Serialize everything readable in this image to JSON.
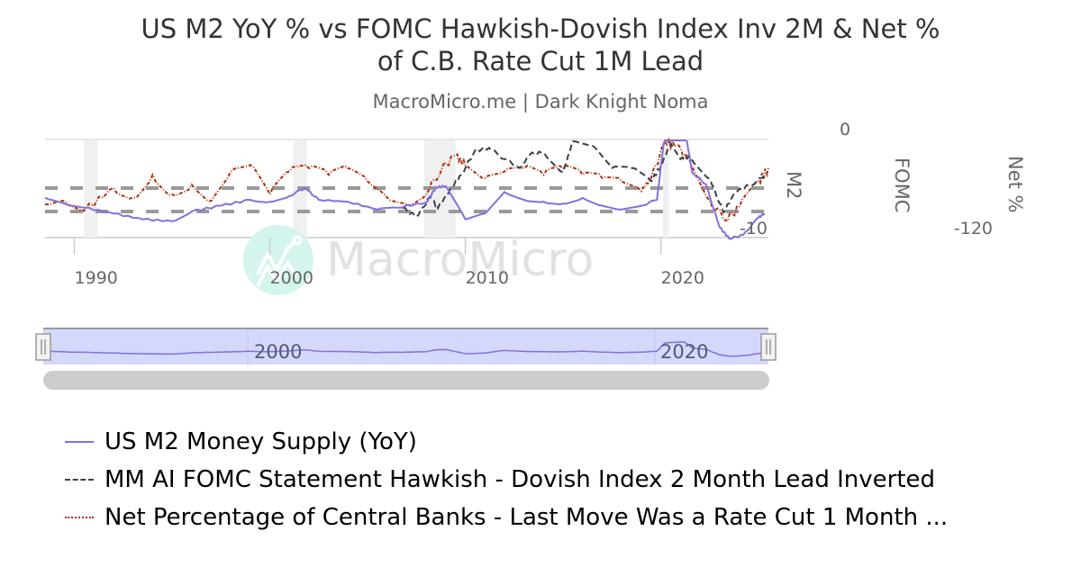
{
  "header": {
    "title_line1": "US M2 YoY % vs FOMC Hawkish-Dovish Index Inv 2M & Net %",
    "title_line2": "of C.B. Rate Cut 1M Lead",
    "subtitle": "MacroMicro.me | Dark Knight Noma"
  },
  "watermark": "MacroMicro",
  "axes": {
    "x_ticks": [
      "1990",
      "2000",
      "2010",
      "2020"
    ],
    "y_m2": {
      "title": "M2",
      "tick_bottom": "-10"
    },
    "y_fomc": {
      "title": "FOMC",
      "tick_top": "0"
    },
    "y_net": {
      "title": "Net %",
      "tick_bottom": "-120"
    }
  },
  "navigator": {
    "labels": [
      "2000",
      "2020"
    ]
  },
  "legend": [
    {
      "label": "US M2 Money Supply (YoY)",
      "color": "#8370db",
      "style": "solid"
    },
    {
      "label": "MM AI FOMC Statement Hawkish - Dovish Index 2 Month Lead Inverted",
      "color": "#3b3f4a",
      "style": "dashed"
    },
    {
      "label": "Net Percentage of Central Banks - Last Move Was a Rate Cut 1 Month ...",
      "color": "#b2300a",
      "style": "dotted"
    }
  ],
  "colors": {
    "m2": "#8370db",
    "fomc": "#3b3f4a",
    "net": "#b2300a",
    "band": "#999999",
    "recession": "#f0f0f0",
    "navigator_fill": "#d4d8fb"
  },
  "chart_data": {
    "type": "line",
    "title": "US M2 YoY % vs FOMC Hawkish-Dovish Index Inv 2M & Net % of C.B. Rate Cut 1M Lead",
    "subtitle": "MacroMicro.me | Dark Knight Noma",
    "xlabel": "",
    "x_range": [
      1988.5,
      2025.5
    ],
    "x_ticks": [
      1990,
      2000,
      2010,
      2020
    ],
    "recession_shading": [
      [
        1990.5,
        1991.2
      ],
      [
        2001.2,
        2001.9
      ],
      [
        2007.9,
        2009.5
      ],
      [
        2020.1,
        2020.4
      ]
    ],
    "reference_bands": {
      "upper_dashed": 10,
      "lower_dashed": 4,
      "axis": "M2"
    },
    "axes": [
      {
        "name": "M2",
        "ylabel": "M2",
        "ylim": [
          -10,
          30
        ],
        "visible_ticks": [
          "-10"
        ]
      },
      {
        "name": "FOMC",
        "ylabel": "FOMC",
        "visible_ticks": [
          "0"
        ]
      },
      {
        "name": "Net %",
        "ylabel": "Net %",
        "visible_ticks": [
          "-120"
        ]
      }
    ],
    "series": [
      {
        "name": "US M2 Money Supply (YoY)",
        "axis": "M2",
        "x": [
          1988.5,
          1989.5,
          1990.5,
          1992,
          1993.5,
          1995,
          1996,
          1997.5,
          1999,
          2000,
          2001,
          2001.8,
          2002.5,
          2004,
          2005.5,
          2006.5,
          2008,
          2008.5,
          2009,
          2010,
          2011,
          2012,
          2013,
          2014,
          2015,
          2016,
          2017,
          2018,
          2019,
          2019.8,
          2020.2,
          2020.6,
          2021.2,
          2021.6,
          2022.3,
          2023,
          2023.5,
          2024.2,
          2025,
          2025.3
        ],
        "values": [
          7.5,
          6,
          5,
          3.5,
          2,
          1.5,
          4,
          5.5,
          7,
          6.5,
          8,
          10,
          7,
          6.5,
          4.5,
          5,
          6.3,
          10.2,
          10.5,
          2,
          3.5,
          9,
          7,
          6.5,
          6,
          7.5,
          5.5,
          4.5,
          5.5,
          7,
          24,
          25,
          26,
          14,
          11,
          0,
          -3,
          -2,
          2.5,
          3.5
        ]
      },
      {
        "name": "MM AI FOMC Statement Hawkish - Dovish Index 2 Month Lead Inverted",
        "axis": "FOMC",
        "x": [
          2006.8,
          2007.5,
          2008.2,
          2008.6,
          2009.2,
          2009.8,
          2010.5,
          2011.2,
          2012,
          2012.8,
          2013.3,
          2014,
          2015,
          2015.5,
          2016.5,
          2017.5,
          2018.5,
          2019.5,
          2020,
          2020.5,
          2021,
          2021.5,
          2022.5,
          2023.2,
          2023.8,
          2024.5,
          2025.3
        ],
        "values": [
          2,
          -2,
          7,
          2,
          10,
          17,
          28,
          29,
          24,
          20,
          26,
          27,
          18,
          32,
          30,
          20,
          20,
          14,
          21,
          31,
          24,
          25,
          15,
          0,
          9,
          12,
          16
        ]
      },
      {
        "name": "Net Percentage of Central Banks - Last Move Was a Rate Cut 1 Month Lead",
        "axis": "Net %",
        "x": [
          1988.5,
          1989.5,
          1990.5,
          1992,
          1993,
          1994,
          1995,
          1996,
          1997,
          1998,
          1999,
          2000,
          2001,
          2002,
          2003,
          2004,
          2005,
          2006,
          2007,
          2008,
          2008.8,
          2009.5,
          2010,
          2011,
          2012,
          2013,
          2014,
          2015,
          2016,
          2017,
          2018,
          2019,
          2019.5,
          2020.2,
          2020.8,
          2021.5,
          2022.5,
          2023.3,
          2024,
          2025,
          2025.5
        ],
        "values": [
          -75,
          -70,
          -85,
          -50,
          -65,
          -30,
          -60,
          -45,
          -70,
          -25,
          -15,
          -60,
          -25,
          -20,
          -30,
          -20,
          -40,
          -65,
          -75,
          -60,
          -20,
          0,
          -15,
          -35,
          -25,
          -20,
          -30,
          -20,
          -30,
          -35,
          -40,
          -55,
          -35,
          20,
          15,
          -10,
          -70,
          -100,
          -80,
          -40,
          -20
        ]
      }
    ],
    "legend_position": "bottom-left"
  }
}
